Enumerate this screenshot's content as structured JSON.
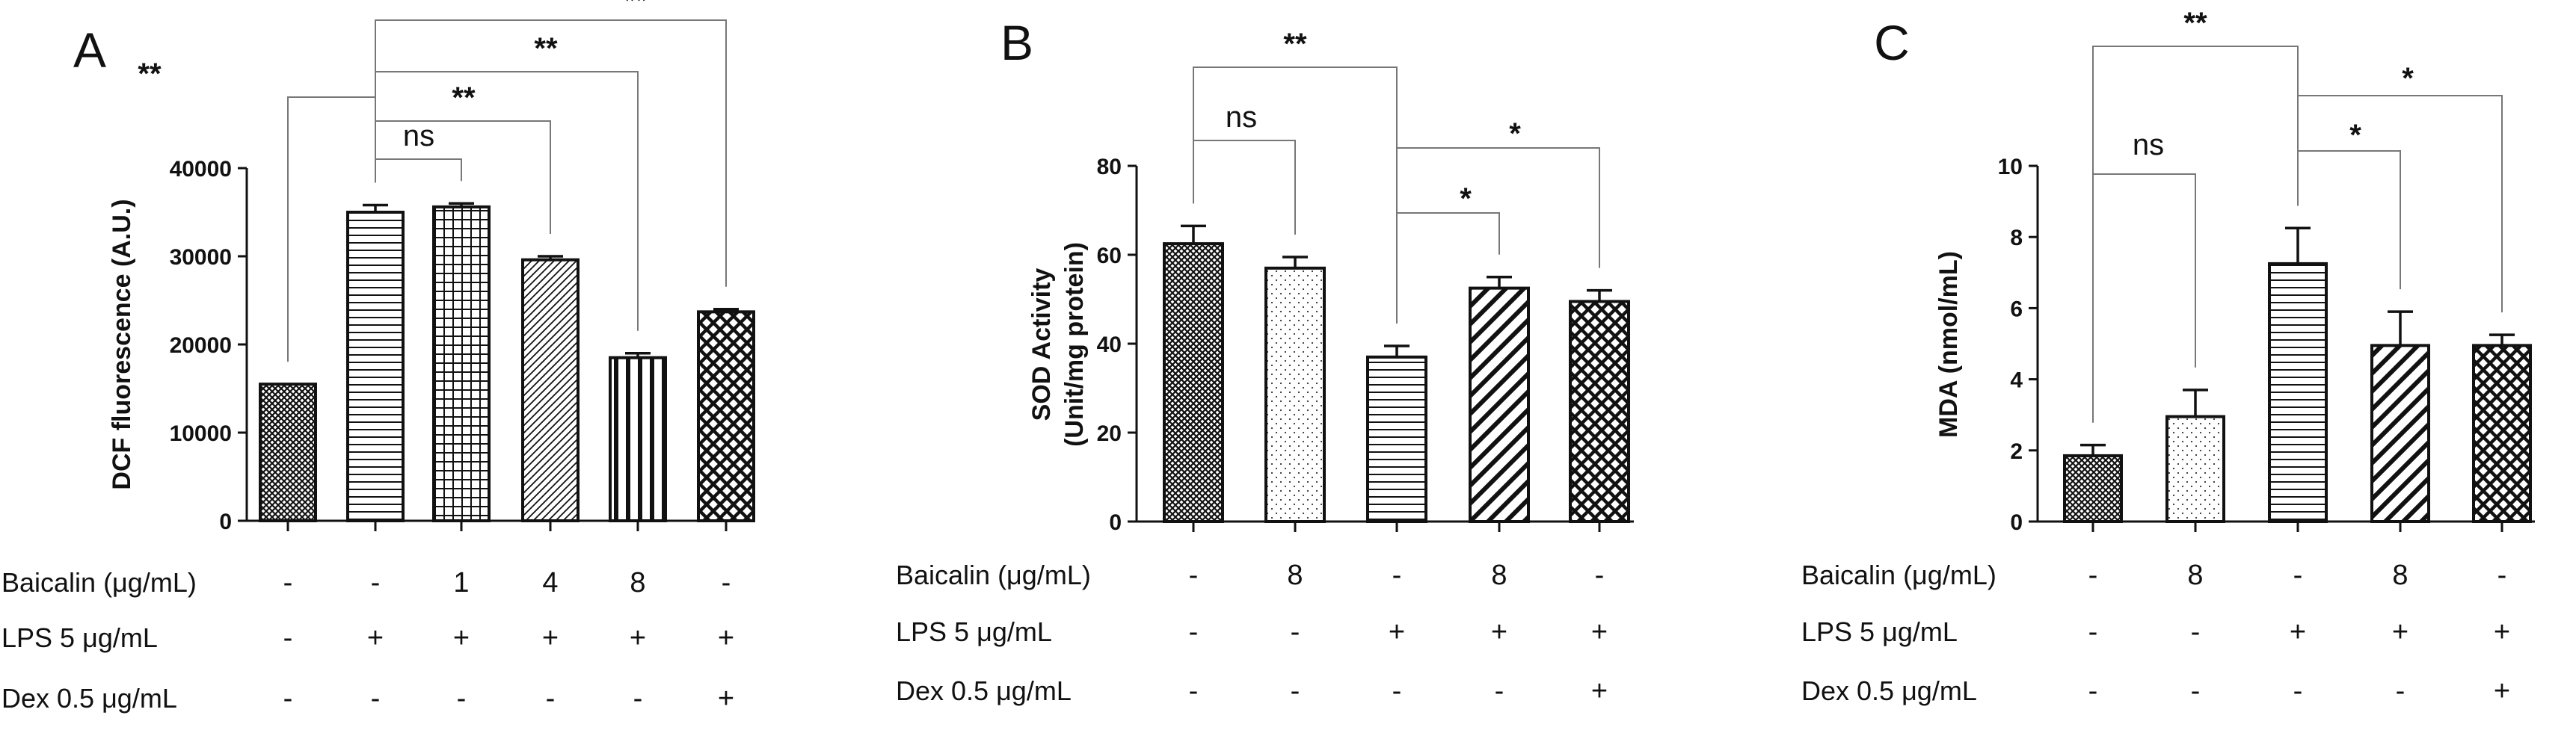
{
  "chart_data": [
    {
      "type": "bar",
      "panel": "A",
      "ylabel": "DCF fluorescence (A.U.)",
      "ylim": [
        0,
        40000
      ],
      "yticks": [
        0,
        10000,
        20000,
        30000,
        40000
      ],
      "bars": [
        {
          "value": 15500,
          "err": 0,
          "pattern": "pat-dense"
        },
        {
          "value": 35000,
          "err": 800,
          "pattern": "pat-hstripe"
        },
        {
          "value": 35600,
          "err": 400,
          "pattern": "pat-grid"
        },
        {
          "value": 29600,
          "err": 400,
          "pattern": "pat-diag"
        },
        {
          "value": 18500,
          "err": 500,
          "pattern": "pat-vstripe"
        },
        {
          "value": 23700,
          "err": 300,
          "pattern": "pat-cross"
        }
      ],
      "conditions": [
        {
          "label": "Baicalin (μg/mL)",
          "values": [
            "-",
            "-",
            "1",
            "4",
            "8",
            "-"
          ]
        },
        {
          "label": "LPS 5 μg/mL",
          "values": [
            "-",
            "+",
            "+",
            "+",
            "+",
            "+"
          ]
        },
        {
          "label": "Dex 0.5 μg/mL",
          "values": [
            "-",
            "-",
            "-",
            "-",
            "-",
            "+"
          ]
        }
      ],
      "significance": [
        {
          "from": 0,
          "to": 1,
          "label": "**"
        },
        {
          "from": 1,
          "to": 2,
          "label": "ns"
        },
        {
          "from": 1,
          "to": 3,
          "label": "**"
        },
        {
          "from": 1,
          "to": 4,
          "label": "**"
        },
        {
          "from": 1,
          "to": 5,
          "label": "**"
        }
      ]
    },
    {
      "type": "bar",
      "panel": "B",
      "ylabel": "SOD Activity (Unit/mg protein)",
      "ylabel_lines": [
        "SOD Activity",
        "(Unit/mg protein)"
      ],
      "ylim": [
        0,
        80
      ],
      "yticks": [
        0,
        20,
        40,
        60,
        80
      ],
      "bars": [
        {
          "value": 62.5,
          "err": 4.0,
          "pattern": "pat-dense"
        },
        {
          "value": 57.0,
          "err": 2.5,
          "pattern": "pat-dots"
        },
        {
          "value": 37.0,
          "err": 2.5,
          "pattern": "pat-hstripe"
        },
        {
          "value": 52.5,
          "err": 2.5,
          "pattern": "pat-diag-wide"
        },
        {
          "value": 49.5,
          "err": 2.5,
          "pattern": "pat-cross"
        }
      ],
      "conditions": [
        {
          "label": "Baicalin (μg/mL)",
          "values": [
            "-",
            "8",
            "-",
            "8",
            "-"
          ]
        },
        {
          "label": "LPS 5 μg/mL",
          "values": [
            "-",
            "-",
            "+",
            "+",
            "+"
          ]
        },
        {
          "label": "Dex 0.5 μg/mL",
          "values": [
            "-",
            "-",
            "-",
            "-",
            "+"
          ]
        }
      ],
      "significance": [
        {
          "from": 0,
          "to": 1,
          "label": "ns"
        },
        {
          "from": 0,
          "to": 2,
          "label": "**"
        },
        {
          "from": 2,
          "to": 3,
          "label": "*"
        },
        {
          "from": 2,
          "to": 4,
          "label": "*"
        }
      ]
    },
    {
      "type": "bar",
      "panel": "C",
      "ylabel": "MDA (nmol/mL)",
      "ylim": [
        0,
        10
      ],
      "yticks": [
        0,
        2,
        4,
        6,
        8,
        10
      ],
      "bars": [
        {
          "value": 1.85,
          "err": 0.3,
          "pattern": "pat-dense"
        },
        {
          "value": 2.95,
          "err": 0.75,
          "pattern": "pat-dots"
        },
        {
          "value": 7.25,
          "err": 1.0,
          "pattern": "pat-hstripe"
        },
        {
          "value": 4.95,
          "err": 0.95,
          "pattern": "pat-diag-wide"
        },
        {
          "value": 4.95,
          "err": 0.3,
          "pattern": "pat-cross"
        }
      ],
      "conditions": [
        {
          "label": "Baicalin (μg/mL)",
          "values": [
            "-",
            "8",
            "-",
            "8",
            "-"
          ]
        },
        {
          "label": "LPS 5 μg/mL",
          "values": [
            "-",
            "-",
            "+",
            "+",
            "+"
          ]
        },
        {
          "label": "Dex 0.5 μg/mL",
          "values": [
            "-",
            "-",
            "-",
            "-",
            "+"
          ]
        }
      ],
      "significance": [
        {
          "from": 0,
          "to": 1,
          "label": "ns"
        },
        {
          "from": 0,
          "to": 2,
          "label": "**"
        },
        {
          "from": 2,
          "to": 3,
          "label": "*"
        },
        {
          "from": 2,
          "to": 4,
          "label": "*"
        }
      ]
    }
  ]
}
